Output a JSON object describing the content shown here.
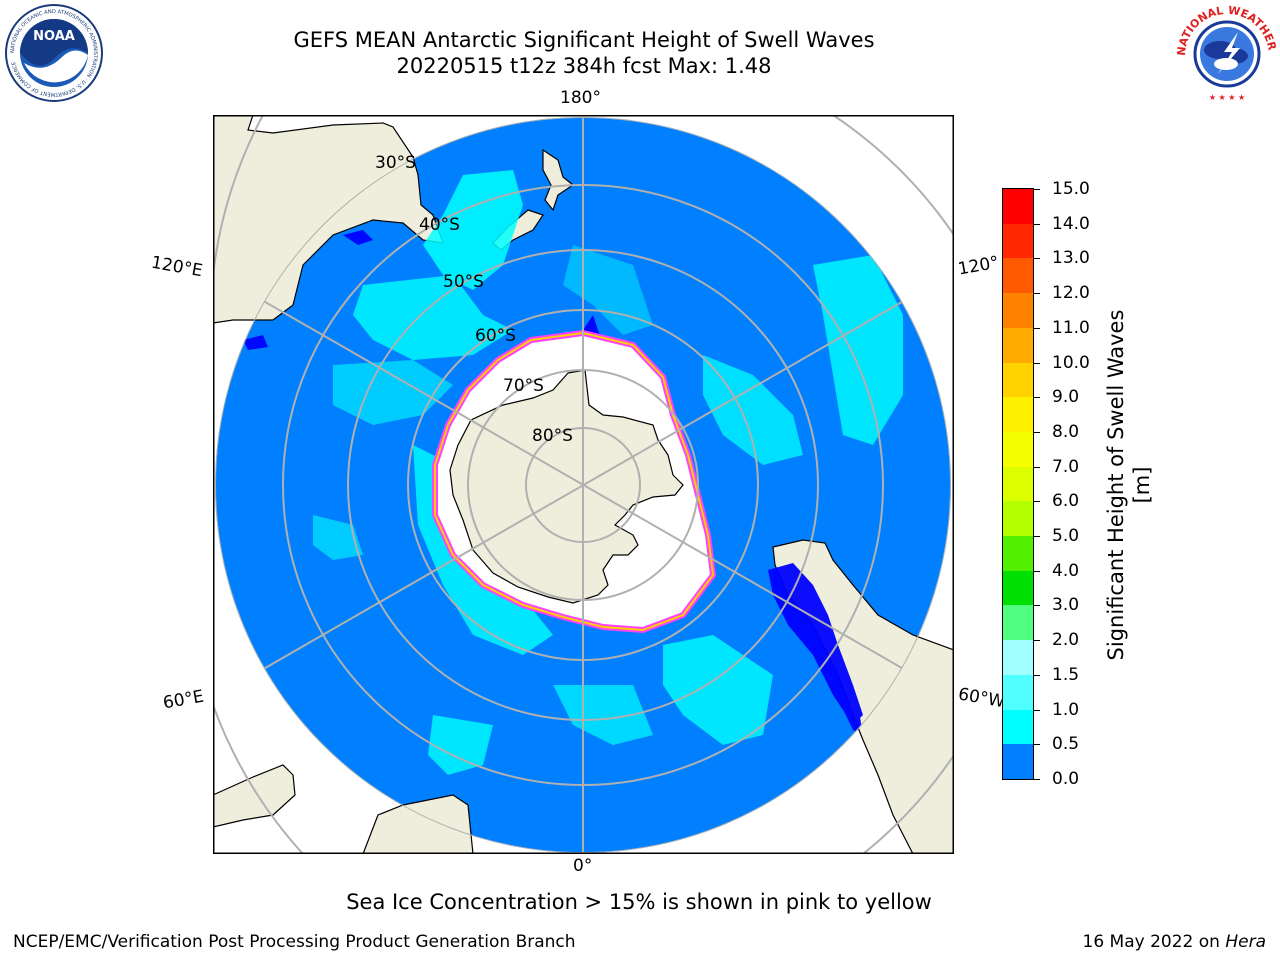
{
  "title": {
    "line1": "GEFS MEAN Antarctic Significant Height of Swell Waves",
    "line2": "20220515 t12z 384h fcst   Max: 1.48"
  },
  "logos": {
    "noaa": {
      "text": "NOAA",
      "ring_text": "NATIONAL OCEANIC AND ATMOSPHERIC ADMINISTRATION · U.S. DEPARTMENT OF COMMERCE"
    },
    "nws": {
      "ring_text": "NATIONAL WEATHER SERVICE"
    }
  },
  "map": {
    "projection": "south-polar-stereographic",
    "lon_labels": [
      "180°",
      "120°E",
      "120°",
      "60°E",
      "60°W",
      "0°"
    ],
    "lat_labels": [
      "30°S",
      "40°S",
      "50°S",
      "60°S",
      "70°S",
      "80°S"
    ],
    "colors": {
      "ocean": "#0080ff",
      "land": "#efeedc",
      "ice": "#ffffff",
      "swell_light": "#00ffff",
      "low": "#0000ff",
      "grid": "#b0b0b0"
    }
  },
  "colorbar": {
    "title": "Significant Height of Swell Waves [m]",
    "labels": [
      "15.0",
      "14.0",
      "13.0",
      "12.0",
      "11.0",
      "10.0",
      "9.0",
      "8.0",
      "7.0",
      "6.0",
      "5.0",
      "4.0",
      "3.0",
      "2.0",
      "1.5",
      "1.0",
      "0.5",
      "0.0"
    ],
    "colors": [
      "#ff0000",
      "#ff2800",
      "#ff5a00",
      "#ff8200",
      "#ffaa00",
      "#ffd200",
      "#fff000",
      "#f5ff00",
      "#dcff00",
      "#b4ff00",
      "#50f000",
      "#00e000",
      "#50ff80",
      "#a0ffff",
      "#50ffff",
      "#00ffff",
      "#0080ff",
      "#0000ff"
    ]
  },
  "notes": {
    "ice": "Sea Ice Concentration > 15% is shown in pink to yellow",
    "credit": "NCEP/EMC/Verification Post Processing Product Generation Branch",
    "date": "16 May 2022 on ",
    "host": "Hera"
  }
}
